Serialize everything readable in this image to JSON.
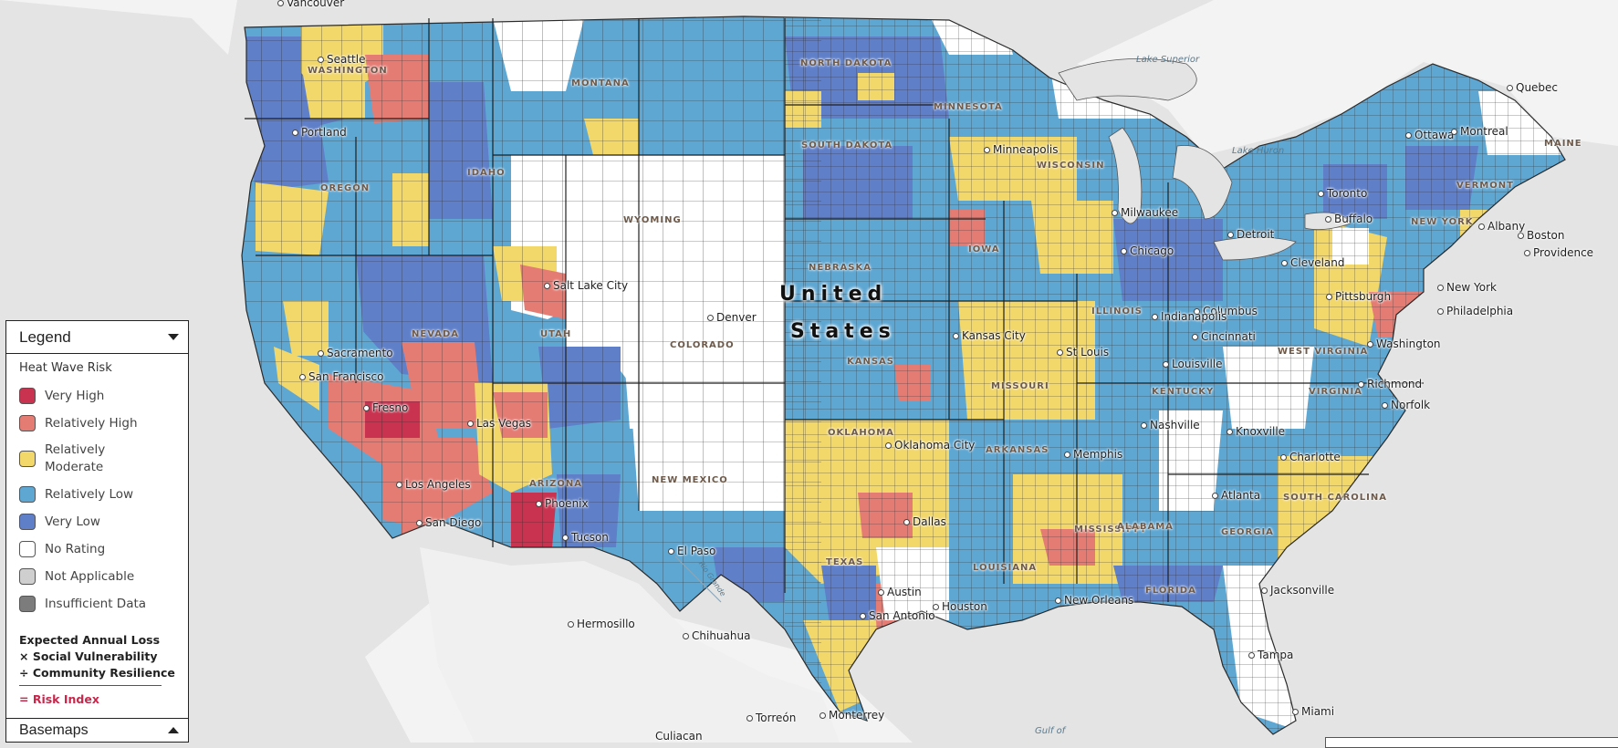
{
  "legend": {
    "title": "Legend",
    "subtitle": "Heat Wave Risk",
    "items": [
      {
        "label": "Very High",
        "color": "#c9334f"
      },
      {
        "label": "Relatively High",
        "color": "#e57c74"
      },
      {
        "label": "Relatively Moderate",
        "color": "#f2d76a"
      },
      {
        "label": "Relatively Low",
        "color": "#5ea7d3"
      },
      {
        "label": "Very Low",
        "color": "#5f7fc9"
      },
      {
        "label": "No Rating",
        "color": "#ffffff"
      },
      {
        "label": "Not Applicable",
        "color": "#cfcfcf"
      },
      {
        "label": "Insufficient Data",
        "color": "#7c7c7c"
      }
    ],
    "formula": {
      "line1": "Expected Annual Loss",
      "line2": "× Social Vulnerability",
      "line3": "÷ Community Resilience",
      "result": "= Risk Index"
    }
  },
  "basemaps_label": "Basemaps",
  "map": {
    "country": {
      "line1": "United",
      "line2": "States"
    },
    "states": [
      "WASHINGTON",
      "MONTANA",
      "NORTH DAKOTA",
      "MINNESOTA",
      "SOUTH DAKOTA",
      "OREGON",
      "IDAHO",
      "WYOMING",
      "WISCONSIN",
      "IOWA",
      "NEBRASKA",
      "ILLINOIS",
      "NEVADA",
      "UTAH",
      "COLORADO",
      "KANSAS",
      "MISSOURI",
      "KENTUCKY",
      "WEST VIRGINIA",
      "VIRGINIA",
      "ARIZONA",
      "NEW MEXICO",
      "OKLAHOMA",
      "ARKANSAS",
      "TEXAS",
      "MISSISSIPPI",
      "ALABAMA",
      "GEORGIA",
      "SOUTH CAROLINA",
      "LOUISIANA",
      "FLORIDA",
      "NEW YORK",
      "VERMONT",
      "MAINE"
    ],
    "cities": [
      "Seattle",
      "Portland",
      "Sacramento",
      "San Francisco",
      "Fresno",
      "Los Angeles",
      "San Diego",
      "Las Vegas",
      "Phoenix",
      "Tucson",
      "Salt Lake City",
      "Denver",
      "El Paso",
      "Kansas City",
      "Oklahoma City",
      "Dallas",
      "Austin",
      "San Antonio",
      "Houston",
      "Minneapolis",
      "Milwaukee",
      "Chicago",
      "Detroit",
      "Cleveland",
      "Pittsburgh",
      "Columbus",
      "Indianapolis",
      "Cincinnati",
      "St Louis",
      "Louisville",
      "Nashville",
      "Knoxville",
      "Memphis",
      "Atlanta",
      "Charlotte",
      "Richmond",
      "Norfolk",
      "Washington",
      "Philadelphia",
      "New York",
      "Boston",
      "Providence",
      "Albany",
      "Buffalo",
      "Toronto",
      "Ottawa",
      "Montreal",
      "Quebec",
      "New Orleans",
      "Jacksonville",
      "Tampa",
      "Miami",
      "Hermosillo",
      "Chihuahua",
      "Torreón",
      "Monterrey",
      "Culiacan",
      "Vancouver"
    ],
    "water": {
      "lake_superior": "Lake Superior",
      "lake_huron": "Lake Huron",
      "gulf": "Gulf of",
      "rio_grande": "Rio Grande"
    }
  },
  "colors": {
    "water": "#e4e4e4",
    "land": "#f2f2f2",
    "border": "#2a2a2a"
  }
}
